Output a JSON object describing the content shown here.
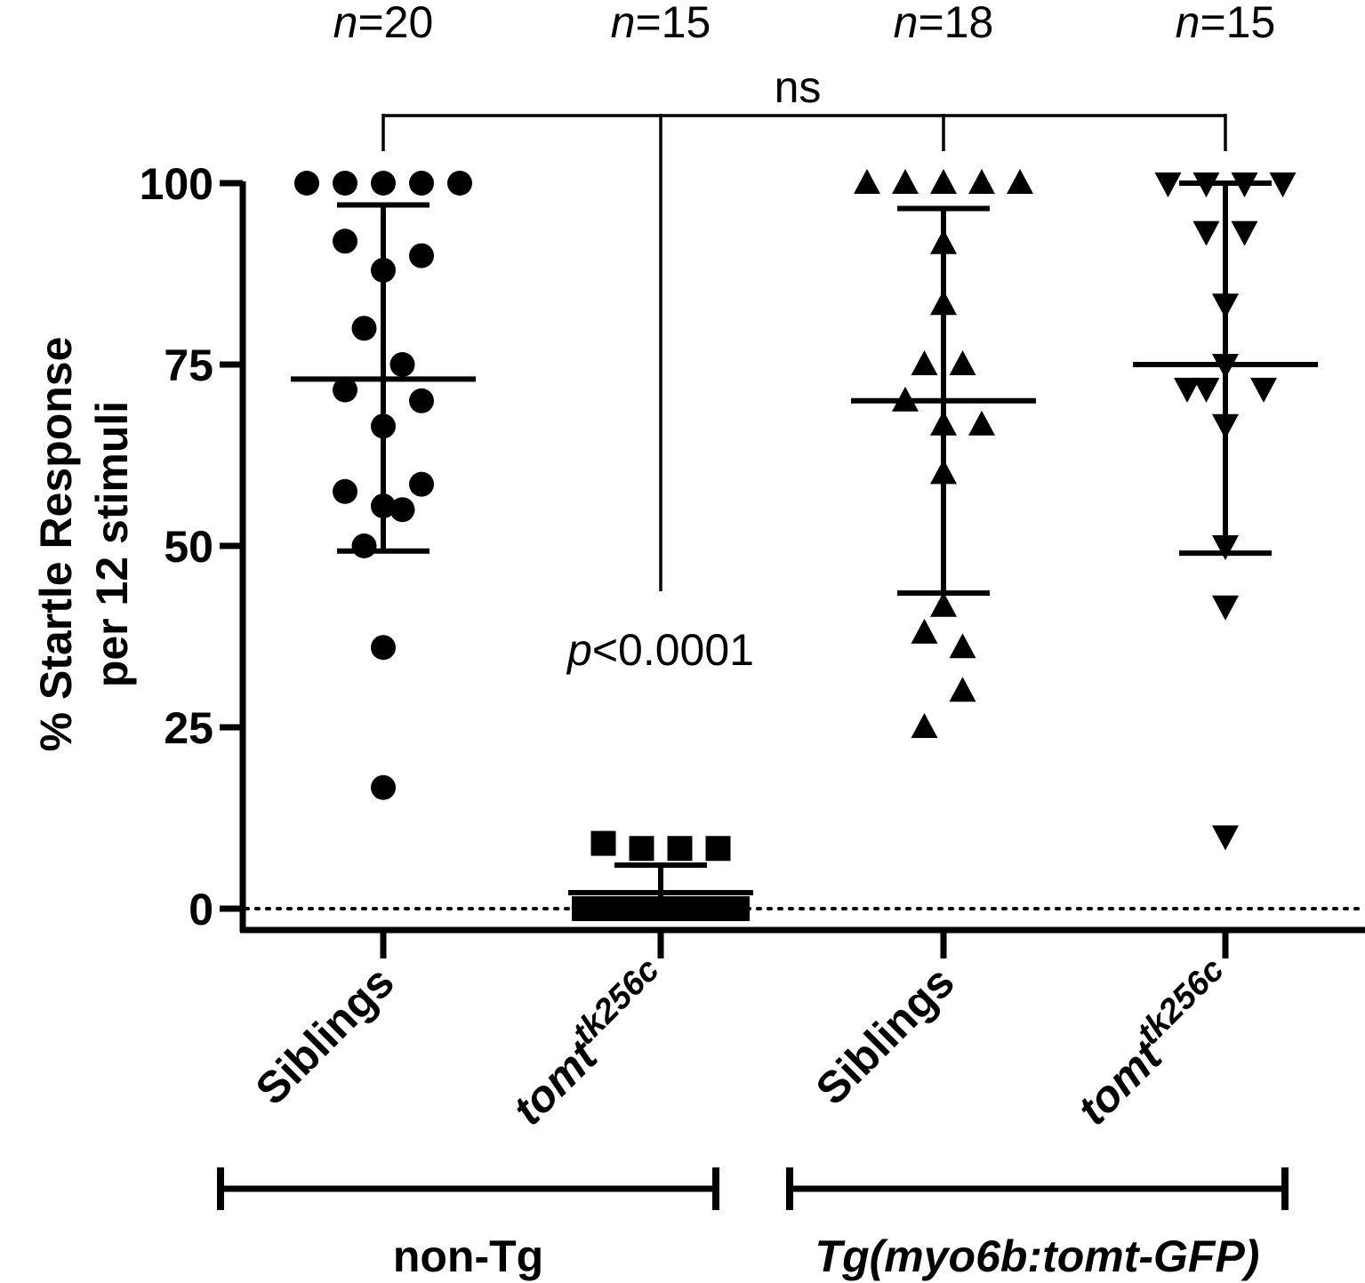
{
  "chart_data": {
    "type": "scatter",
    "ylabel_line1": "% Startle Response",
    "ylabel_line2": "per 12 stimuli",
    "ylim": [
      0,
      100
    ],
    "yticks": [
      "0",
      "25",
      "50",
      "75",
      "100"
    ],
    "baseline_y": 0,
    "groups": [
      {
        "label": "Siblings",
        "italic": false,
        "marker": "circle",
        "n_prefix": "n",
        "n_value": "=20",
        "mean": 73,
        "sd_upper": 97,
        "sd_lower": 49.3,
        "points": [
          {
            "x": -2,
            "y": 100
          },
          {
            "x": -1,
            "y": 100
          },
          {
            "x": 0,
            "y": 100
          },
          {
            "x": 1,
            "y": 100
          },
          {
            "x": 2,
            "y": 100
          },
          {
            "x": -1,
            "y": 92
          },
          {
            "x": 1,
            "y": 90
          },
          {
            "x": 0,
            "y": 88
          },
          {
            "x": -0.5,
            "y": 80
          },
          {
            "x": 0.5,
            "y": 75
          },
          {
            "x": -1,
            "y": 71.5
          },
          {
            "x": 1,
            "y": 70
          },
          {
            "x": 0,
            "y": 66.5
          },
          {
            "x": 1,
            "y": 58.5
          },
          {
            "x": -1,
            "y": 57.5
          },
          {
            "x": 0,
            "y": 55.5
          },
          {
            "x": 0.5,
            "y": 55
          },
          {
            "x": -0.5,
            "y": 50
          },
          {
            "x": 0,
            "y": 36
          },
          {
            "x": 0,
            "y": 16.7
          }
        ]
      },
      {
        "label": "tomt",
        "label_sup": "tk256c",
        "italic": true,
        "marker": "square",
        "n_prefix": "n",
        "n_value": "=15",
        "mean": 2.2,
        "sd_upper": 6,
        "sd_lower": 0,
        "points": [
          {
            "x": -1.5,
            "y": 9
          },
          {
            "x": -0.5,
            "y": 8.3
          },
          {
            "x": 0.5,
            "y": 8.3
          },
          {
            "x": 1.5,
            "y": 8.3
          },
          {
            "x": -2,
            "y": 0
          },
          {
            "x": -1.5,
            "y": 0
          },
          {
            "x": -1,
            "y": 0
          },
          {
            "x": -0.5,
            "y": 0
          },
          {
            "x": 0,
            "y": 0
          },
          {
            "x": 0.5,
            "y": 0
          },
          {
            "x": 1,
            "y": 0
          },
          {
            "x": 1.5,
            "y": 0
          },
          {
            "x": 2,
            "y": 0
          },
          {
            "x": -0.25,
            "y": 0
          },
          {
            "x": 0.25,
            "y": 0
          }
        ]
      },
      {
        "label": "Siblings",
        "italic": false,
        "marker": "triangle-up",
        "n_prefix": "n",
        "n_value": "=18",
        "mean": 70,
        "sd_upper": 96.5,
        "sd_lower": 43.5,
        "points": [
          {
            "x": -2,
            "y": 100
          },
          {
            "x": -1,
            "y": 100
          },
          {
            "x": 0,
            "y": 100
          },
          {
            "x": 1,
            "y": 100
          },
          {
            "x": 2,
            "y": 100
          },
          {
            "x": 0,
            "y": 91.7
          },
          {
            "x": 0,
            "y": 83.3
          },
          {
            "x": -0.5,
            "y": 75
          },
          {
            "x": 0.5,
            "y": 75
          },
          {
            "x": -1,
            "y": 70
          },
          {
            "x": 0,
            "y": 66.7
          },
          {
            "x": 1,
            "y": 66.7
          },
          {
            "x": 0,
            "y": 60
          },
          {
            "x": 0,
            "y": 41.7
          },
          {
            "x": -0.5,
            "y": 38
          },
          {
            "x": 0.5,
            "y": 36
          },
          {
            "x": 0.5,
            "y": 30
          },
          {
            "x": -0.5,
            "y": 25
          }
        ]
      },
      {
        "label": "tomt",
        "label_sup": "tk256c",
        "italic": true,
        "marker": "triangle-down",
        "n_prefix": "n",
        "n_value": "=15",
        "mean": 75,
        "sd_upper": 100,
        "sd_lower": 49,
        "points": [
          {
            "x": -1.5,
            "y": 100
          },
          {
            "x": -0.5,
            "y": 100
          },
          {
            "x": 0.5,
            "y": 100
          },
          {
            "x": 1.5,
            "y": 100
          },
          {
            "x": -0.5,
            "y": 93.3
          },
          {
            "x": 0.5,
            "y": 93.3
          },
          {
            "x": 0,
            "y": 83.3
          },
          {
            "x": 0,
            "y": 75
          },
          {
            "x": -1,
            "y": 71.7
          },
          {
            "x": -0.5,
            "y": 71.7
          },
          {
            "x": 1,
            "y": 71.7
          },
          {
            "x": 0,
            "y": 66.7
          },
          {
            "x": 0,
            "y": 50
          },
          {
            "x": 0,
            "y": 41.7
          },
          {
            "x": 0,
            "y": 10
          }
        ]
      }
    ],
    "annotations": {
      "ns": "ns",
      "p_prefix": "p",
      "p_value": "<0.0001"
    },
    "group_brackets": [
      {
        "label": "non-Tg",
        "italic": false
      },
      {
        "label": "Tg(myo6b:tomt-GFP)",
        "italic": true
      }
    ]
  }
}
